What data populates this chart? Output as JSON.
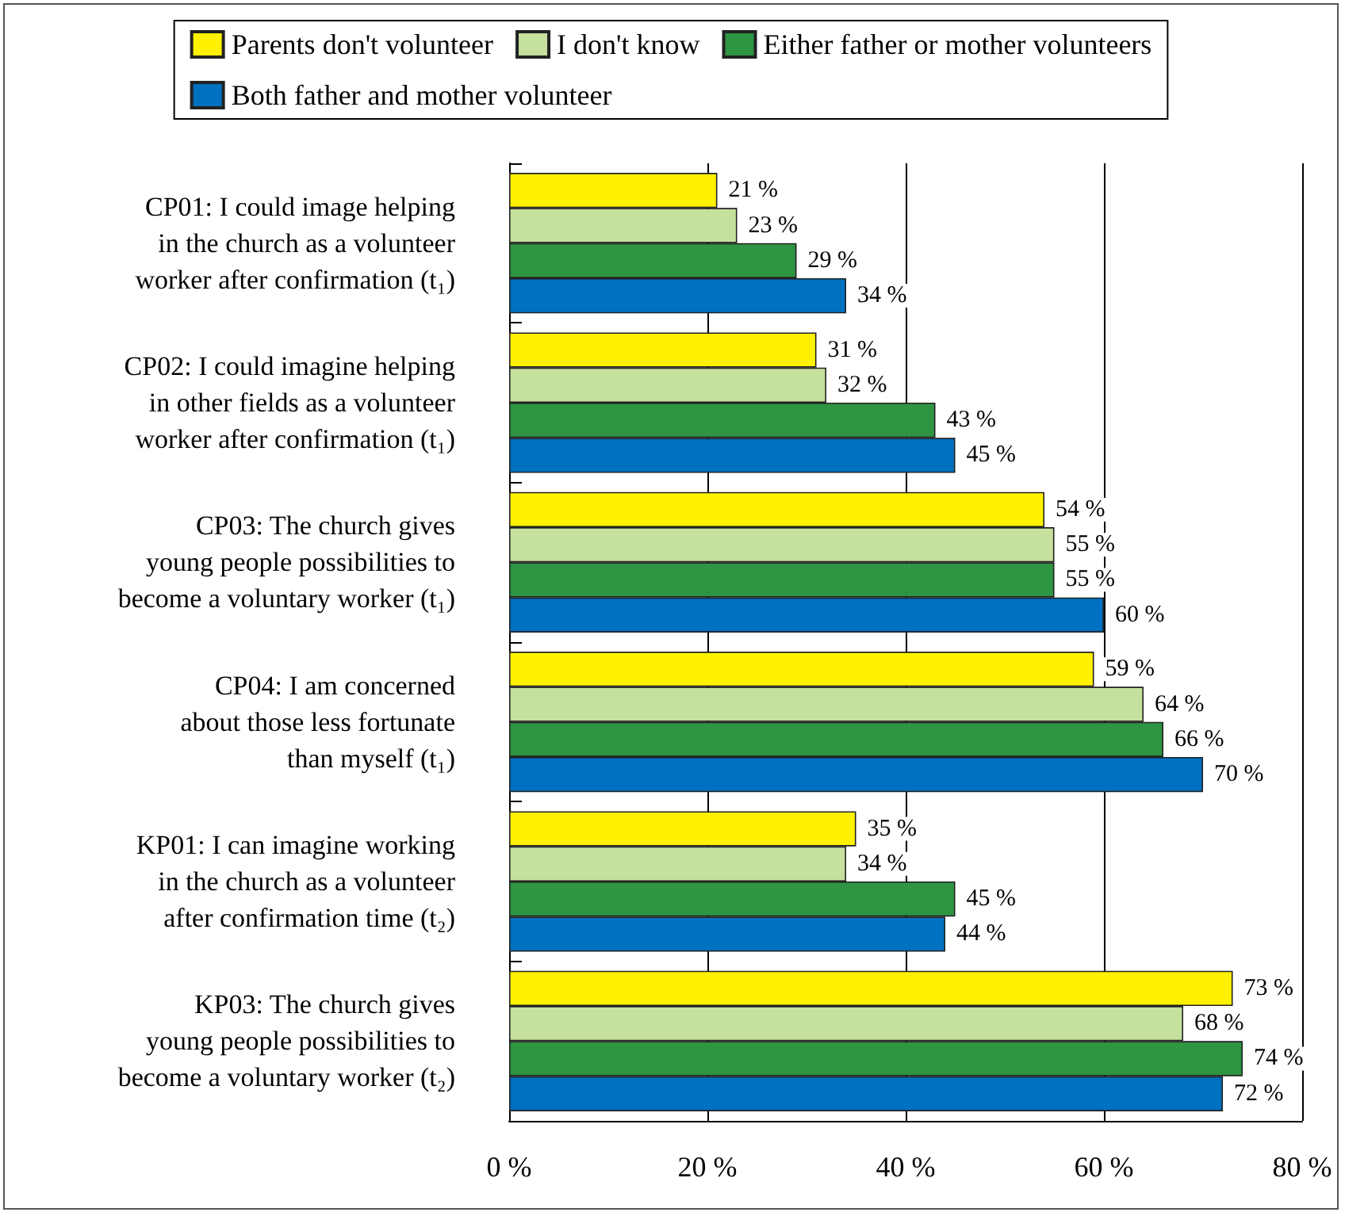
{
  "chart_data": {
    "type": "bar",
    "orientation": "horizontal",
    "legend": "top",
    "grid": "x",
    "categories": [
      "CP01: I could image helping\nin the church as a volunteer\nworker after confirmation (t₁)",
      "CP02: I could imagine helping\nin other fields as a volunteer\nworker after confirmation (t₁)",
      "CP03: The church gives\nyoung people possibilities to\nbecome a voluntary worker (t₁)",
      "CP04: I am concerned\nabout those less fortunate\nthan myself (t₁)",
      "KP01: I can imagine working\nin the church as a volunteer\nafter confirmation time (t₂)",
      "KP03: The church gives\nyoung people possibilities to\nbecome a voluntary worker (t₂)"
    ],
    "series": [
      {
        "name": "Parents don't volunteer",
        "color": "#fff200",
        "values": [
          21,
          31,
          54,
          59,
          35,
          73
        ],
        "value_labels": [
          "21 %",
          "31 %",
          "54 %",
          "59 %",
          "35 %",
          "73 %"
        ]
      },
      {
        "name": "I don't know",
        "color": "#c6e09e",
        "values": [
          23,
          32,
          55,
          64,
          34,
          68
        ],
        "value_labels": [
          "23 %",
          "32 %",
          "55 %",
          "64 %",
          "34 %",
          "68 %"
        ]
      },
      {
        "name": "Either father or mother volunteers",
        "color": "#2e9543",
        "values": [
          29,
          43,
          55,
          66,
          45,
          74
        ],
        "value_labels": [
          "29 %",
          "43 %",
          "55 %",
          "66 %",
          "45 %",
          "74 %"
        ]
      },
      {
        "name": "Both father and mother volunteer",
        "color": "#0070c0",
        "values": [
          34,
          45,
          60,
          70,
          44,
          72
        ],
        "value_labels": [
          "34 %",
          "45 %",
          "60 %",
          "70 %",
          "44 %",
          "72 %"
        ]
      }
    ],
    "xlim": [
      0,
      80
    ],
    "xticks": [
      {
        "value": 0,
        "label": "0 %"
      },
      {
        "value": 20,
        "label": "20 %"
      },
      {
        "value": 40,
        "label": "40 %"
      },
      {
        "value": 60,
        "label": "60 %"
      },
      {
        "value": 80,
        "label": "80 %"
      }
    ]
  }
}
